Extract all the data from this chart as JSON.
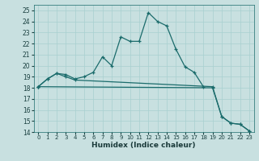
{
  "xlabel": "Humidex (Indice chaleur)",
  "bg_color": "#c8e0e0",
  "grid_color": "#a8d0d0",
  "line_color": "#1a6b6b",
  "ylim": [
    14,
    25.5
  ],
  "xlim": [
    -0.5,
    23.5
  ],
  "yticks": [
    14,
    15,
    16,
    17,
    18,
    19,
    20,
    21,
    22,
    23,
    24,
    25
  ],
  "xticks": [
    0,
    1,
    2,
    3,
    4,
    5,
    6,
    7,
    8,
    9,
    10,
    11,
    12,
    13,
    14,
    15,
    16,
    17,
    18,
    19,
    20,
    21,
    22,
    23
  ],
  "line1_x": [
    0,
    1,
    2,
    3,
    4,
    5,
    6,
    7,
    8,
    9,
    10,
    11,
    12,
    13,
    14,
    15,
    16,
    17,
    18
  ],
  "line1_y": [
    18.1,
    18.8,
    19.3,
    19.2,
    18.8,
    19.0,
    19.4,
    20.8,
    20.0,
    22.6,
    22.2,
    22.2,
    24.8,
    24.0,
    23.6,
    21.5,
    19.9,
    19.4,
    18.1
  ],
  "line2_x": [
    0,
    1,
    2,
    3,
    4,
    19,
    20,
    21,
    22,
    23
  ],
  "line2_y": [
    18.1,
    18.8,
    19.3,
    19.0,
    18.7,
    18.1,
    15.4,
    14.8,
    14.7,
    14.1
  ],
  "line3_x": [
    0,
    19,
    20,
    21,
    22,
    23
  ],
  "line3_y": [
    18.1,
    18.0,
    15.4,
    14.8,
    14.7,
    14.1
  ]
}
